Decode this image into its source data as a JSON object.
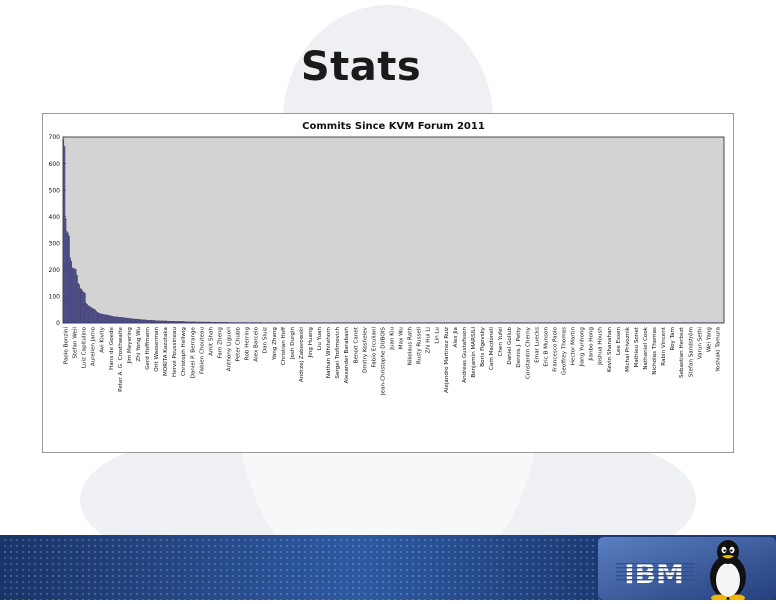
{
  "slide": {
    "title": "Stats"
  },
  "chart_data": {
    "type": "bar",
    "title": "Commits Since KVM Forum 2011",
    "xlabel": "",
    "ylabel": "",
    "ylim": [
      0,
      700
    ],
    "yticks": [
      0,
      100,
      200,
      300,
      400,
      500,
      600,
      700
    ],
    "grid": false,
    "legend": "none",
    "bar_color": "#4a4a8e",
    "plot_background": "#d3d3d3",
    "tick_labels": [
      "Paolo Bonzini",
      "Stefan Weil",
      "Luiz Capitulino",
      "Aurelien Jarno",
      "Avi Kivity",
      "Hans de Goede",
      "Peter A. G. Crosthwaite",
      "Jim Meyering",
      "Zhi Yong Wu",
      "Gerd Hoffmann",
      "Orit Wasserman",
      "MORITA Kazutaka",
      "Hervé Poussineau",
      "Christoph Hellwig",
      "Daniel P. Berrange",
      "Fabien Chouteau",
      "Amit Shah",
      "Fam Zheng",
      "Anthony Liguori",
      "Peter Chubb",
      "Rob Herring",
      "Alex Barcelo",
      "Dan Sluiz",
      "Yang Zhang",
      "Christian Hoff",
      "Josh Durgin",
      "Andrzej Zaborowski",
      "Jing Huang",
      "Liu Yuan",
      "Nathan Whitehorn",
      "Sergei Trofimovich",
      "Alexander Barabash",
      "Benoit Canet",
      "Dmitry Koshelev",
      "Fabio Erculiani",
      "Jean-Christophe DUBOIS",
      "Juan Kiu",
      "Max Wu",
      "Nikolaus Rath",
      "Rusty Russell",
      "Zhi Hui Li",
      "Lin Lu",
      "Alejandro Martinez Ruiz",
      "Alex Jia",
      "Andreas Gustafsson",
      "Benjamin MARSILI",
      "Boris Figovsky",
      "Cam Macdonell",
      "Chen Yufei",
      "Daniel Gollub",
      "Dennis J. Petty",
      "Constantin Cherny",
      "Emar Luecks",
      "Eric B Munson",
      "Francesco Paolo",
      "Geoffrey Thomas",
      "Hector Martin",
      "Jiang Yunhong",
      "Jianbo Hong",
      "Joshua Housh",
      "Kevin Shanahan",
      "Lee Essen",
      "Michal Privoznik",
      "Mathieu Sonet",
      "Nathaniel Cook",
      "Nicholas Thomas",
      "Rabin Vincent",
      "Roy Tam",
      "Sebastian Herbszt",
      "Stefan Sandström",
      "Varun Sethi",
      "Wei Yang",
      "Yoshiaki Tamura"
    ],
    "values": [
      690,
      665,
      395,
      345,
      340,
      328,
      245,
      232,
      208,
      205,
      204,
      202,
      180,
      150,
      145,
      130,
      128,
      120,
      116,
      112,
      75,
      70,
      65,
      64,
      60,
      58,
      55,
      52,
      50,
      45,
      40,
      38,
      36,
      35,
      34,
      33,
      32,
      31,
      31,
      30,
      29,
      28,
      27,
      26,
      25,
      24,
      24,
      23,
      23,
      22,
      22,
      21,
      21,
      20,
      20,
      19,
      19,
      18,
      18,
      17,
      17,
      16,
      16,
      15,
      15,
      15,
      14,
      14,
      13,
      13,
      13,
      12,
      12,
      12,
      11,
      11,
      11,
      10,
      10,
      10,
      10,
      9,
      9,
      9,
      9,
      9,
      8,
      8,
      8,
      8,
      8,
      8,
      7,
      7,
      7,
      7,
      7,
      7,
      7,
      6,
      6,
      6,
      6,
      6,
      6,
      6,
      6,
      5,
      5,
      5,
      5,
      5,
      5,
      5,
      5,
      5,
      5,
      4,
      4,
      4,
      4,
      4,
      4,
      4,
      4,
      4,
      4,
      4,
      4,
      4,
      3,
      3,
      3,
      3,
      3,
      3,
      3,
      3,
      3,
      3,
      3,
      3,
      3,
      3,
      3,
      3,
      2,
      2,
      2,
      2,
      2,
      2,
      2,
      2,
      2,
      2,
      2,
      2,
      2,
      2,
      2,
      2,
      2,
      2,
      2,
      2,
      2,
      2,
      2,
      2,
      2,
      2,
      2,
      2,
      2,
      2,
      1,
      1,
      1,
      1,
      1,
      1,
      1,
      1,
      1,
      1,
      1,
      1,
      1,
      1,
      1,
      1,
      1,
      1,
      1,
      1,
      1,
      1,
      1,
      1,
      1,
      1,
      1,
      1,
      1,
      1,
      1,
      1,
      1,
      1,
      1,
      1,
      1,
      1,
      1,
      1,
      1,
      1,
      1,
      1,
      1,
      1,
      1,
      1,
      1,
      1,
      1,
      1,
      1,
      1,
      1,
      1,
      1,
      1,
      1,
      1,
      1,
      1,
      1,
      1,
      1,
      1,
      1,
      1,
      1,
      1,
      1,
      1,
      1,
      1,
      1,
      1,
      1,
      1,
      1,
      1,
      1,
      1,
      1,
      1,
      1,
      1,
      1,
      1,
      1,
      1,
      1,
      1,
      1,
      1,
      1,
      1,
      1,
      1,
      1,
      1,
      1,
      1,
      1,
      1,
      1,
      1,
      1,
      1,
      1,
      1,
      1,
      1,
      1,
      1,
      1,
      1,
      1,
      1,
      1,
      1,
      1,
      1,
      1,
      1,
      1,
      1,
      1,
      1,
      1,
      1,
      1,
      1,
      1,
      1,
      1,
      1,
      1,
      1,
      1,
      1,
      1,
      1,
      1,
      1,
      1,
      1,
      1,
      1,
      1,
      1,
      1,
      1,
      1,
      1,
      1,
      1,
      1,
      1,
      1,
      1,
      1,
      1,
      1,
      1,
      1,
      1,
      1,
      1,
      1,
      1,
      1,
      1,
      1,
      1,
      1,
      1,
      1,
      1,
      1,
      1,
      1,
      1,
      1,
      1,
      1,
      1,
      1,
      1,
      1,
      1,
      1,
      1,
      1,
      1,
      1,
      1,
      1,
      1,
      1,
      1,
      1,
      1,
      1,
      1,
      1,
      1,
      1,
      1,
      1,
      1,
      1,
      1,
      1,
      1,
      1,
      1,
      1,
      1,
      1,
      1,
      1,
      1,
      1,
      1,
      1,
      1,
      1,
      1,
      1,
      1,
      1,
      1,
      1,
      1,
      1,
      1,
      1,
      1,
      1,
      1,
      1,
      1,
      1,
      1,
      1,
      1,
      1,
      1,
      1,
      1,
      1,
      1,
      1,
      1,
      1,
      1,
      1,
      1,
      1,
      1,
      1,
      1,
      1,
      1,
      1,
      1,
      1,
      1,
      1,
      1,
      1,
      1,
      1,
      1,
      1,
      1,
      1,
      1,
      1,
      1,
      1,
      1,
      1,
      1,
      1,
      1,
      1,
      1,
      1,
      1,
      1,
      1,
      1,
      1,
      1,
      1,
      1,
      1,
      1,
      1,
      1,
      1,
      1,
      1,
      1,
      1,
      1,
      1,
      1,
      1,
      1,
      1,
      1,
      1,
      1,
      1,
      1,
      1,
      1,
      1,
      1,
      1,
      1,
      1,
      1,
      1,
      1,
      1,
      1,
      1,
      1,
      1,
      1,
      1,
      1,
      1,
      1,
      1,
      1,
      1,
      1,
      1,
      1,
      1,
      1,
      1,
      1,
      1,
      1,
      1,
      1,
      1,
      1,
      1,
      1,
      1,
      1,
      1,
      1,
      1,
      1,
      1,
      1,
      1,
      1,
      1,
      1,
      1,
      1,
      1,
      1,
      1,
      1,
      1,
      1,
      1,
      1,
      1,
      1,
      1,
      1,
      1,
      1,
      1,
      1,
      1,
      1,
      1,
      1,
      1,
      1,
      1,
      1,
      1,
      1,
      1,
      1,
      1,
      1,
      1,
      1,
      1,
      1,
      1,
      1,
      1,
      1
    ]
  },
  "footer": {
    "brand": "IBM",
    "brand_color": "#1b3a73",
    "mascot": "tux-penguin-icon"
  }
}
